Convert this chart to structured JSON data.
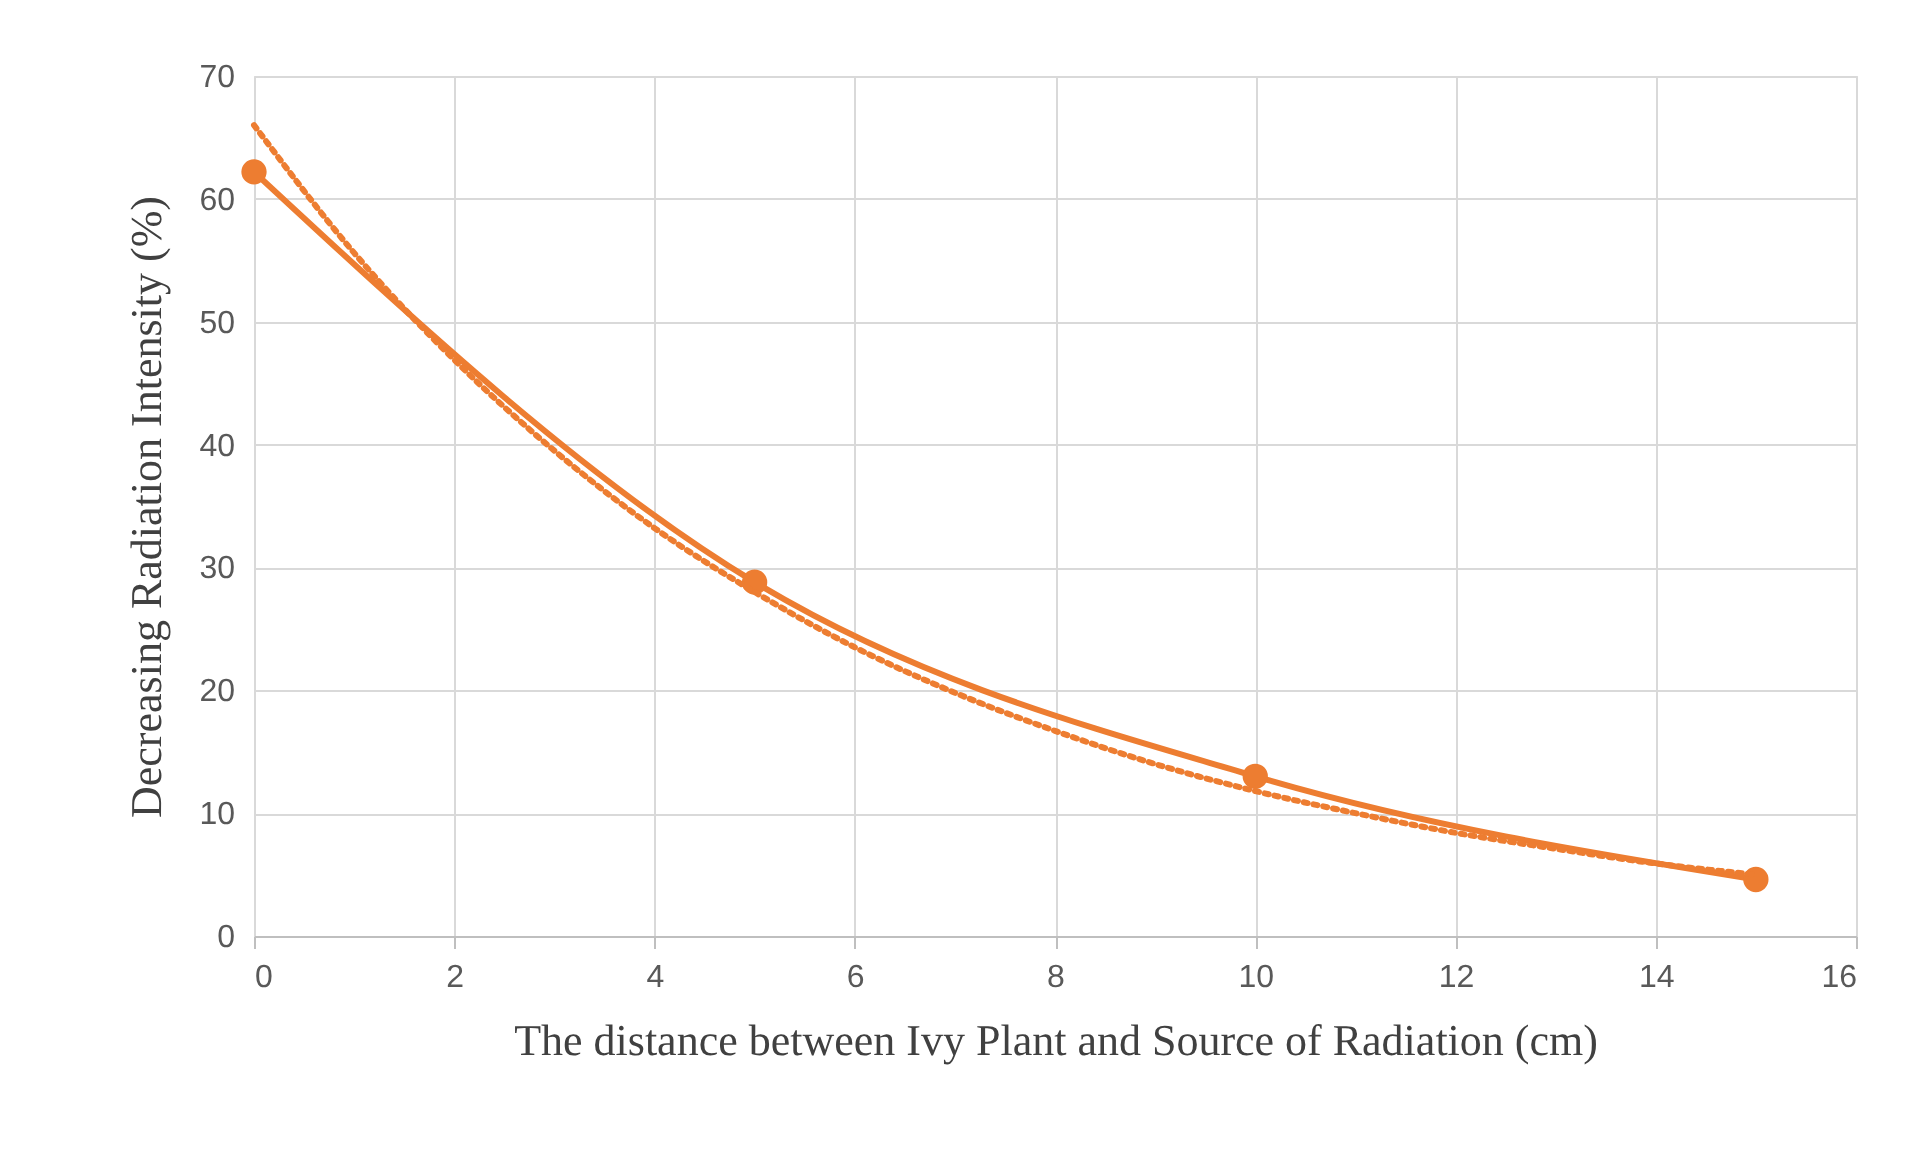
{
  "chart_data": {
    "type": "line",
    "xlabel": "The distance between Ivy Plant and Source of Radiation (cm)",
    "ylabel": "Decreasing Radiation Intensity (%)",
    "x": [
      0,
      5,
      10,
      15
    ],
    "series": [
      {
        "color": "#ed7d31",
        "values": [
          62.2,
          28.8,
          13.0,
          4.6
        ],
        "marker": "circle",
        "line_style": "solid"
      },
      {
        "type": "line",
        "color": "#ed7d31",
        "x": [
          0,
          1,
          2,
          3,
          4,
          5,
          6,
          7,
          8,
          9,
          10,
          11,
          12,
          13,
          14,
          15
        ],
        "values": [
          66.0,
          55.6,
          46.9,
          39.5,
          33.2,
          28.0,
          23.5,
          19.8,
          16.7,
          14.0,
          11.8,
          10.0,
          8.4,
          7.1,
          5.9,
          5.0
        ],
        "marker": "none",
        "line_style": "dotted"
      }
    ],
    "xlim": [
      0,
      16
    ],
    "xticks": [
      0,
      2,
      4,
      6,
      8,
      10,
      12,
      14,
      16
    ],
    "ylim": [
      0,
      70
    ],
    "yticks": [
      0,
      10,
      20,
      30,
      40,
      50,
      60,
      70
    ],
    "grid": true
  }
}
